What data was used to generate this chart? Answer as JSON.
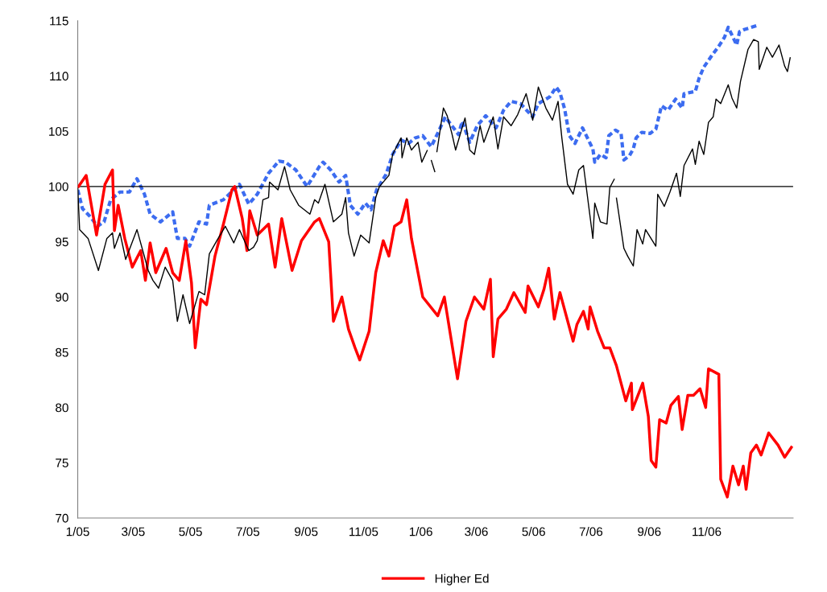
{
  "chart_data": {
    "type": "line",
    "xlim": [
      "2005-01-01",
      "2007-02-01"
    ],
    "ylim": [
      70,
      115
    ],
    "xticks": [
      {
        "value": "2005-01-01",
        "label": "1/05"
      },
      {
        "value": "2005-03-01",
        "label": "3/05"
      },
      {
        "value": "2005-05-01",
        "label": "5/05"
      },
      {
        "value": "2005-07-01",
        "label": "7/05"
      },
      {
        "value": "2005-09-01",
        "label": "9/05"
      },
      {
        "value": "2005-11-01",
        "label": "11/05"
      },
      {
        "value": "2006-01-01",
        "label": "1/06"
      },
      {
        "value": "2006-03-01",
        "label": "3/06"
      },
      {
        "value": "2006-05-01",
        "label": "5/06"
      },
      {
        "value": "2006-07-01",
        "label": "7/06"
      },
      {
        "value": "2006-09-01",
        "label": "9/06"
      },
      {
        "value": "2006-11-01",
        "label": "11/06"
      }
    ],
    "yticks": [
      70,
      75,
      80,
      85,
      90,
      95,
      100,
      105,
      110,
      115
    ],
    "grid": false,
    "legend": "bottom",
    "marker": "none",
    "ref_lines": [
      {
        "axis": "y",
        "value": 100,
        "color": "#000000",
        "line_style": "solid"
      }
    ],
    "series": [
      {
        "name": "Higher Ed",
        "color": "#ff0000",
        "line_style": "solid",
        "x": [
          "2005-01-01",
          "2005-01-10",
          "2005-01-21",
          "2005-01-30",
          "2005-02-07",
          "2005-02-09",
          "2005-02-13",
          "2005-02-20",
          "2005-02-28",
          "2005-03-09",
          "2005-03-14",
          "2005-03-19",
          "2005-03-25",
          "2005-04-05",
          "2005-04-12",
          "2005-04-19",
          "2005-04-26",
          "2005-05-02",
          "2005-05-06",
          "2005-05-12",
          "2005-05-18",
          "2005-05-27",
          "2005-06-05",
          "2005-06-14",
          "2005-06-17",
          "2005-06-25",
          "2005-06-30",
          "2005-07-03",
          "2005-07-11",
          "2005-07-23",
          "2005-07-30",
          "2005-08-06",
          "2005-08-17",
          "2005-08-27",
          "2005-09-10",
          "2005-09-15",
          "2005-09-25",
          "2005-09-30",
          "2005-10-09",
          "2005-10-16",
          "2005-10-23",
          "2005-10-28",
          "2005-11-07",
          "2005-11-14",
          "2005-11-22",
          "2005-11-28",
          "2005-12-04",
          "2005-12-11",
          "2005-12-17",
          "2005-12-22",
          "2005-12-29",
          "2006-01-03",
          "2006-01-19",
          "2006-01-26",
          "2006-02-09",
          "2006-02-18",
          "2006-02-27",
          "2006-03-09",
          "2006-03-16",
          "2006-03-19",
          "2006-03-24",
          "2006-04-02",
          "2006-04-10",
          "2006-04-22",
          "2006-04-25",
          "2006-05-06",
          "2006-05-12",
          "2006-05-17",
          "2006-05-23",
          "2006-05-29",
          "2006-06-12",
          "2006-06-16",
          "2006-06-23",
          "2006-06-28",
          "2006-06-30",
          "2006-07-08",
          "2006-07-15",
          "2006-07-21",
          "2006-07-28",
          "2006-08-07",
          "2006-08-13",
          "2006-08-14",
          "2006-08-25",
          "2006-08-31",
          "2006-09-03",
          "2006-09-08",
          "2006-09-12",
          "2006-09-19",
          "2006-09-24",
          "2006-10-02",
          "2006-10-06",
          "2006-10-12",
          "2006-10-18",
          "2006-10-25",
          "2006-10-31",
          "2006-11-03",
          "2006-11-14",
          "2006-11-16",
          "2006-11-23",
          "2006-11-29",
          "2006-12-05",
          "2006-12-10",
          "2006-12-13",
          "2006-12-18",
          "2006-12-24",
          "2006-12-29",
          "2007-01-06",
          "2007-01-16",
          "2007-01-23",
          "2007-01-31"
        ],
        "values": [
          99.9,
          101,
          95.6,
          100.2,
          101.5,
          96,
          98.3,
          95.3,
          92.7,
          94.2,
          91.5,
          94.9,
          92.2,
          94.4,
          92.2,
          91.5,
          95.1,
          91.3,
          85.4,
          89.8,
          89.3,
          93.7,
          96.6,
          99.7,
          100,
          97.1,
          94.2,
          97.8,
          95.6,
          96.6,
          92.7,
          97.1,
          92.4,
          95.1,
          96.8,
          97.1,
          95,
          87.8,
          90,
          87.1,
          85.4,
          84.3,
          86.9,
          92.2,
          95.1,
          93.7,
          96.4,
          96.8,
          98.8,
          95.3,
          92.2,
          90,
          88.3,
          90,
          82.6,
          87.8,
          90,
          88.9,
          91.6,
          84.6,
          88,
          88.9,
          90.4,
          88.6,
          91,
          89.1,
          90.7,
          92.6,
          88,
          90.4,
          86,
          87.5,
          88.7,
          87.1,
          89.1,
          86.9,
          85.4,
          85.4,
          83.8,
          80.6,
          82.2,
          79.8,
          82.2,
          79.2,
          75.2,
          74.6,
          78.9,
          78.6,
          80.2,
          81,
          78,
          81.1,
          81.1,
          81.7,
          80,
          83.5,
          83,
          73.5,
          71.9,
          74.7,
          73,
          74.7,
          72.6,
          75.9,
          76.6,
          75.7,
          77.7,
          76.6,
          75.5,
          76.5
        ]
      },
      {
        "color": "#000000",
        "line_style": "solid",
        "x": [
          "2005-01-01",
          "2005-01-03",
          "2005-01-12",
          "2005-01-23",
          "2005-02-01",
          "2005-02-07",
          "2005-02-09",
          "2005-02-15",
          "2005-02-21",
          "2005-03-05",
          "2005-03-17",
          "2005-03-22",
          "2005-03-28",
          "2005-04-04",
          "2005-04-12",
          "2005-04-17",
          "2005-04-23",
          "2005-04-30",
          "2005-05-10",
          "2005-05-16",
          "2005-05-21",
          "2005-05-29",
          "2005-06-07",
          "2005-06-16",
          "2005-06-22",
          "2005-07-02",
          "2005-07-07",
          "2005-07-11",
          "2005-07-17",
          "2005-07-23",
          "2005-07-24",
          "2005-08-02",
          "2005-08-09",
          "2005-08-15",
          "2005-08-24",
          "2005-09-05",
          "2005-09-10",
          "2005-09-14",
          "2005-09-21",
          "2005-09-30",
          "2005-10-09",
          "2005-10-13",
          "2005-10-16",
          "2005-10-22",
          "2005-10-29",
          "2005-11-07",
          "2005-11-14",
          "2005-11-18",
          "2005-11-28",
          "2005-12-02",
          "2005-12-11",
          "2005-12-12",
          "2005-12-17",
          "2005-12-22",
          "2005-12-29",
          "2006-01-02",
          "2006-01-08",
          "2006-01-10",
          "2006-01-12",
          "2006-01-16",
          "2006-01-17",
          "2006-01-18",
          "2006-01-25",
          "2006-01-29",
          "2006-02-03",
          "2006-02-07",
          "2006-02-17",
          "2006-02-22",
          "2006-02-27",
          "2006-03-05",
          "2006-03-09",
          "2006-03-19",
          "2006-03-24",
          "2006-03-30",
          "2006-04-07",
          "2006-04-14",
          "2006-04-23",
          "2006-04-30",
          "2006-05-06",
          "2006-05-14",
          "2006-05-21",
          "2006-05-27",
          "2006-05-31",
          "2006-06-06",
          "2006-06-12",
          "2006-06-18",
          "2006-06-23",
          "2006-07-03",
          "2006-07-05",
          "2006-07-11",
          "2006-07-18",
          "2006-07-21",
          "2006-07-26",
          "2006-07-27",
          "2006-07-28",
          "2006-08-05",
          "2006-08-09",
          "2006-08-15",
          "2006-08-19",
          "2006-08-25",
          "2006-08-28",
          "2006-09-08",
          "2006-09-10",
          "2006-09-17",
          "2006-09-23",
          "2006-09-30",
          "2006-10-04",
          "2006-10-08",
          "2006-10-17",
          "2006-10-20",
          "2006-10-24",
          "2006-10-29",
          "2006-11-03",
          "2006-11-08",
          "2006-11-11",
          "2006-11-16",
          "2006-11-24",
          "2006-11-28",
          "2006-12-03",
          "2006-12-07",
          "2006-12-15",
          "2006-12-21",
          "2006-12-26",
          "2006-12-27",
          "2007-01-04",
          "2007-01-10",
          "2007-01-17",
          "2007-01-23",
          "2007-01-26",
          "2007-01-29"
        ],
        "values": [
          99.9,
          96.1,
          95.3,
          92.4,
          95.3,
          95.8,
          94.4,
          95.8,
          93.4,
          96.1,
          92.4,
          91.5,
          90.8,
          92.7,
          91.5,
          87.8,
          90.2,
          87.6,
          90.5,
          90.2,
          93.9,
          95.1,
          96.4,
          94.9,
          96.1,
          94.2,
          94.5,
          95.1,
          98.8,
          99,
          100.4,
          99.7,
          101.8,
          99.7,
          98.3,
          97.5,
          98.8,
          98.5,
          100.2,
          96.8,
          97.5,
          99,
          95.8,
          93.7,
          95.6,
          94.9,
          99,
          100,
          101,
          102.9,
          104.4,
          102.6,
          104.4,
          103.3,
          104,
          102.2,
          103.3,
          null,
          102.4,
          101.3,
          null,
          103.1,
          107.1,
          106.4,
          104.8,
          103.3,
          106.2,
          103.3,
          102.9,
          105.5,
          104,
          106.3,
          103.4,
          106.3,
          105.5,
          106.5,
          108.4,
          106,
          109,
          107.1,
          106,
          107.7,
          104.4,
          100.2,
          99.3,
          101.5,
          101.9,
          95.3,
          98.5,
          96.8,
          96.6,
          99.9,
          100.7,
          null,
          99,
          94.4,
          93.7,
          92.8,
          96.1,
          94.8,
          96.1,
          94.6,
          99.3,
          98.2,
          99.5,
          101.2,
          99.1,
          101.9,
          103.4,
          102,
          104.1,
          102.9,
          105.8,
          106.3,
          107.9,
          107.5,
          109.2,
          108,
          107.1,
          109.5,
          112.4,
          113.3,
          113.1,
          110.6,
          112.6,
          111.7,
          112.8,
          110.9,
          110.4,
          111.7
        ]
      },
      {
        "color": "#3c6cf0",
        "line_style": "dashed",
        "x": [
          "2005-01-01",
          "2005-01-06",
          "2005-01-14",
          "2005-01-22",
          "2005-01-29",
          "2005-02-05",
          "2005-02-15",
          "2005-02-25",
          "2005-03-05",
          "2005-03-13",
          "2005-03-19",
          "2005-03-30",
          "2005-04-12",
          "2005-04-17",
          "2005-04-25",
          "2005-04-30",
          "2005-05-10",
          "2005-05-18",
          "2005-05-21",
          "2005-06-05",
          "2005-06-22",
          "2005-07-02",
          "2005-07-11",
          "2005-07-23",
          "2005-08-03",
          "2005-08-10",
          "2005-08-21",
          "2005-09-02",
          "2005-09-15",
          "2005-09-19",
          "2005-09-27",
          "2005-10-06",
          "2005-10-13",
          "2005-10-18",
          "2005-10-26",
          "2005-11-03",
          "2005-11-09",
          "2005-11-15",
          "2005-11-25",
          "2005-12-02",
          "2005-12-11",
          "2005-12-19",
          "2005-12-26",
          "2006-01-03",
          "2006-01-12",
          "2006-01-20",
          "2006-01-27",
          "2006-02-03",
          "2006-02-10",
          "2006-02-14",
          "2006-02-22",
          "2006-03-02",
          "2006-03-11",
          "2006-03-22",
          "2006-03-30",
          "2006-04-07",
          "2006-04-17",
          "2006-04-30",
          "2006-05-06",
          "2006-05-18",
          "2006-05-25",
          "2006-05-29",
          "2006-06-03",
          "2006-06-08",
          "2006-06-14",
          "2006-06-22",
          "2006-06-26",
          "2006-07-03",
          "2006-07-05",
          "2006-07-11",
          "2006-07-17",
          "2006-07-20",
          "2006-07-27",
          "2006-08-02",
          "2006-08-05",
          "2006-08-11",
          "2006-08-15",
          "2006-08-18",
          "2006-08-24",
          "2006-09-02",
          "2006-09-08",
          "2006-09-14",
          "2006-09-21",
          "2006-09-29",
          "2006-10-06",
          "2006-10-08",
          "2006-10-20",
          "2006-10-24",
          "2006-10-29",
          "2006-11-07",
          "2006-11-14",
          "2006-11-20",
          "2006-11-24",
          "2006-12-03",
          "2006-12-06",
          "2006-12-11",
          "2006-12-26"
        ],
        "values": [
          99.7,
          98,
          97.3,
          96.4,
          96.8,
          98.8,
          99.5,
          99.5,
          100.7,
          99.3,
          97.5,
          96.8,
          97.7,
          95.3,
          95.3,
          94.6,
          96.8,
          96.6,
          98.3,
          98.8,
          100.2,
          98.4,
          99.3,
          101.2,
          102.3,
          102.2,
          101.5,
          100,
          101.8,
          102.2,
          101.5,
          100.4,
          101,
          98.3,
          97.5,
          98.5,
          97.9,
          99.7,
          101.1,
          102.9,
          104.2,
          103.9,
          104.4,
          104.6,
          103.6,
          105,
          106.3,
          105.5,
          104.7,
          105.9,
          104,
          105.5,
          106.4,
          105.3,
          106.9,
          107.7,
          107.5,
          106.3,
          107.5,
          108.1,
          109,
          108.5,
          107,
          104.6,
          103.9,
          105.3,
          104.6,
          103.4,
          102.2,
          102.9,
          102.6,
          104.6,
          105.1,
          104.8,
          102.4,
          102.8,
          103.4,
          104.4,
          104.9,
          104.8,
          105.2,
          107.3,
          106.9,
          107.9,
          107.1,
          108.4,
          108.6,
          109.8,
          110.8,
          111.9,
          112.7,
          113.5,
          114.4,
          112.8,
          114,
          114.2,
          114.6
        ]
      }
    ]
  }
}
